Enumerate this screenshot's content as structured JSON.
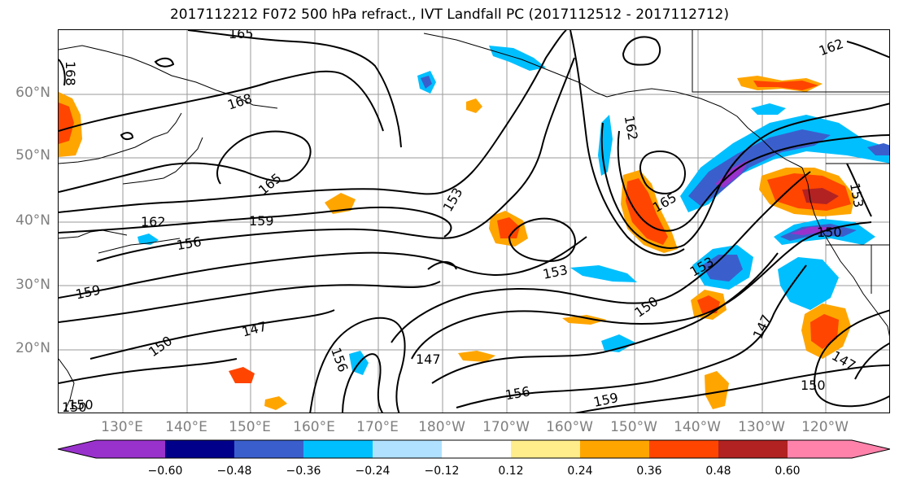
{
  "title": "2017112212 F072 500 hPa refract., IVT Landfall PC (2017112512 - 2017112712)",
  "lat_labels": [
    "60°N",
    "50°N",
    "40°N",
    "30°N",
    "20°N"
  ],
  "lon_labels": [
    "130°E",
    "140°E",
    "150°E",
    "160°E",
    "170°E",
    "180°W",
    "170°W",
    "160°W",
    "150°W",
    "140°W",
    "130°W",
    "120°W"
  ],
  "contour_labels": [
    "165",
    "168",
    "168",
    "165",
    "162",
    "159",
    "156",
    "159",
    "153",
    "150",
    "147",
    "150",
    "156",
    "147",
    "156",
    "153",
    "162",
    "165",
    "153",
    "150",
    "150",
    "147",
    "147",
    "150",
    "162",
    "153",
    "159",
    "150",
    "156"
  ],
  "colorbar": {
    "colors": [
      "#9932cc",
      "#00008b",
      "#3a5fcd",
      "#00bfff",
      "#b0e2ff",
      "#ffffff",
      "#ffec8b",
      "#ffa500",
      "#ff4500",
      "#b22222",
      "#ff82ab"
    ],
    "tick_labels": [
      "−0.60",
      "−0.48",
      "−0.36",
      "−0.24",
      "−0.12",
      "0.12",
      "0.24",
      "0.36",
      "0.48",
      "0.60"
    ]
  }
}
